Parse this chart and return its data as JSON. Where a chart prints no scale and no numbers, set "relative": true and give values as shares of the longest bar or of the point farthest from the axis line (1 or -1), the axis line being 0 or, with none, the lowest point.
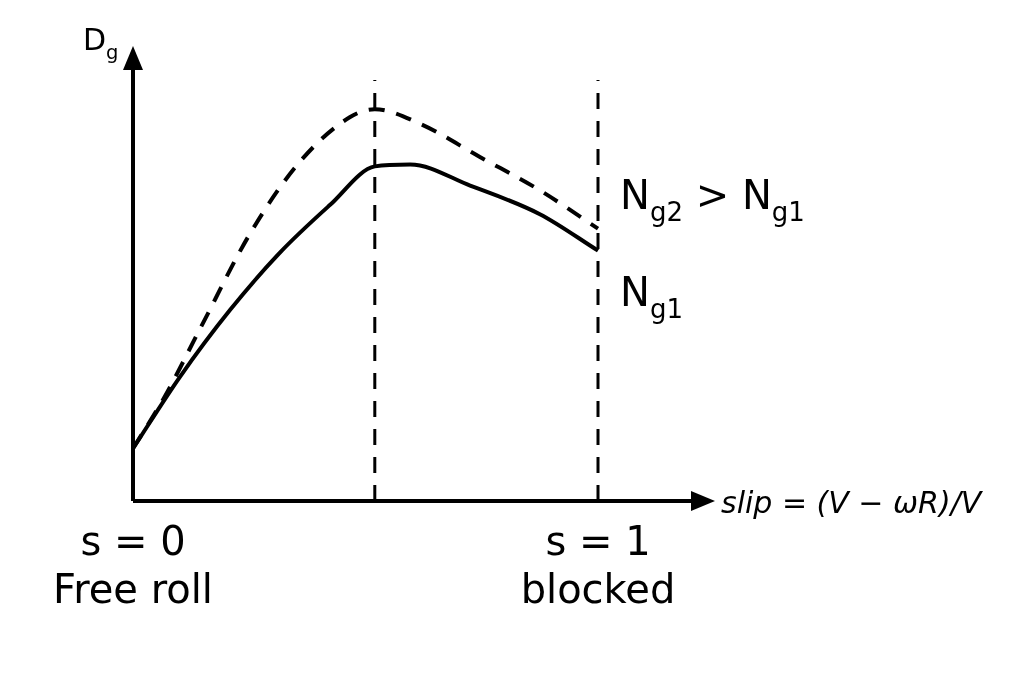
{
  "chart_data": {
    "type": "line",
    "relative": true,
    "ylabel": "D$_{g}$",
    "xlabel": "slip = (V − ωR)/V",
    "xlim": [
      0,
      1.2
    ],
    "xticks": [
      {
        "value": 0,
        "label": "s = 0\nFree roll"
      },
      {
        "value": 1,
        "label": "s = 1\nblocked"
      }
    ],
    "legend": false,
    "grid": false,
    "marker": "none",
    "ref_lines": [
      {
        "axis": "x",
        "value": 0.52,
        "color": "#000000",
        "line_style": "dashed"
      },
      {
        "axis": "x",
        "value": 1,
        "color": "#000000",
        "line_style": "dashed"
      }
    ],
    "series": [
      {
        "name": "N$_{g2}$ > N$_{g1}$",
        "color": "#000000",
        "line_style": "dashed",
        "x": [
          0,
          0.069,
          0.144,
          0.252,
          0.359,
          0.467,
          0.52,
          0.617,
          0.746,
          0.875,
          1
        ],
        "values": [
          0.134,
          0.268,
          0.439,
          0.683,
          0.866,
          0.98,
          1,
          0.963,
          0.878,
          0.793,
          0.695
        ]
      },
      {
        "name": "N$_{g1}$",
        "color": "#000000",
        "line_style": "solid",
        "x": [
          0,
          0.101,
          0.209,
          0.316,
          0.424,
          0.52,
          0.596,
          0.725,
          0.875,
          1
        ],
        "values": [
          0.134,
          0.317,
          0.488,
          0.634,
          0.756,
          0.854,
          0.859,
          0.805,
          0.732,
          0.639
        ]
      }
    ]
  }
}
